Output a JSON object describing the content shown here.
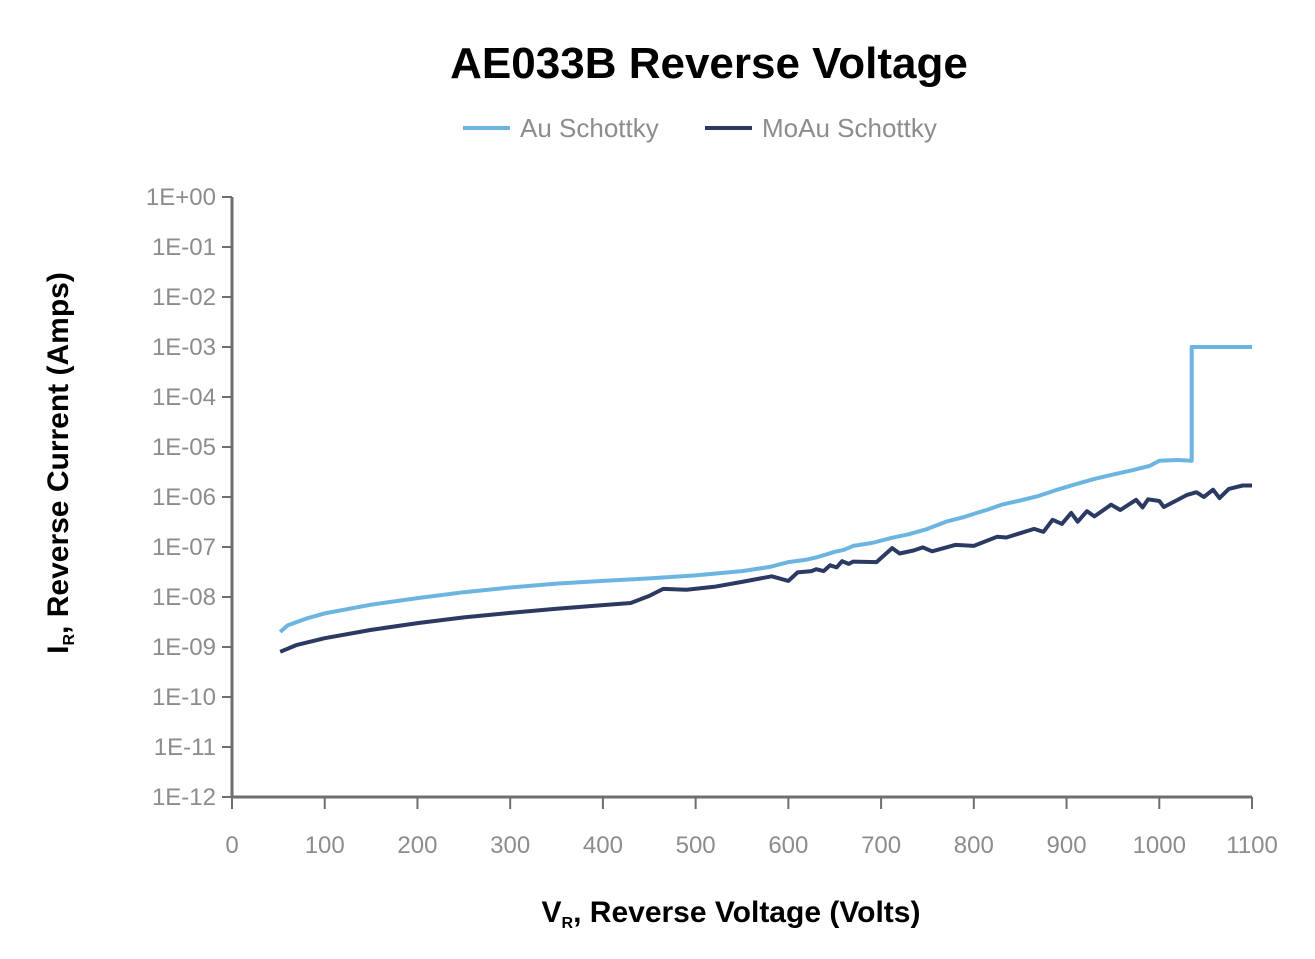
{
  "chart_data": {
    "type": "line",
    "title": "AE033B Reverse Voltage",
    "xlabel_main": "V",
    "xlabel_sub": "R",
    "xlabel_rest": ", Reverse Voltage (Volts)",
    "ylabel_main": "I",
    "ylabel_sub": "R",
    "ylabel_rest": ", Reverse Current (Amps)",
    "xlim": [
      0,
      1100
    ],
    "ylim": [
      1e-12,
      1
    ],
    "yscale": "log",
    "x_ticks": [
      "0",
      "100",
      "200",
      "300",
      "400",
      "500",
      "600",
      "700",
      "800",
      "900",
      "1000",
      "1100"
    ],
    "y_ticks": [
      "1E+00",
      "1E-01",
      "1E-02",
      "1E-03",
      "1E-04",
      "1E-05",
      "1E-06",
      "1E-07",
      "1E-08",
      "1E-09",
      "1E-10",
      "1E-11",
      "1E-12"
    ],
    "grid": false,
    "legend_position": "top-center",
    "series": [
      {
        "name": "Au Schottky",
        "color": "#6bb5e0",
        "points": [
          [
            52,
            2e-09
          ],
          [
            60,
            2.7e-09
          ],
          [
            80,
            3.7e-09
          ],
          [
            100,
            4.7e-09
          ],
          [
            150,
            7e-09
          ],
          [
            200,
            9.5e-09
          ],
          [
            250,
            1.25e-08
          ],
          [
            300,
            1.55e-08
          ],
          [
            350,
            1.85e-08
          ],
          [
            400,
            2.1e-08
          ],
          [
            450,
            2.35e-08
          ],
          [
            500,
            2.7e-08
          ],
          [
            550,
            3.3e-08
          ],
          [
            580,
            4e-08
          ],
          [
            600,
            5e-08
          ],
          [
            620,
            5.6e-08
          ],
          [
            630,
            6.2e-08
          ],
          [
            640,
            7e-08
          ],
          [
            650,
            8e-08
          ],
          [
            660,
            8.8e-08
          ],
          [
            670,
            1.05e-07
          ],
          [
            690,
            1.2e-07
          ],
          [
            710,
            1.5e-07
          ],
          [
            730,
            1.8e-07
          ],
          [
            750,
            2.3e-07
          ],
          [
            770,
            3.2e-07
          ],
          [
            790,
            4e-07
          ],
          [
            800,
            4.6e-07
          ],
          [
            815,
            5.6e-07
          ],
          [
            830,
            7e-07
          ],
          [
            850,
            8.5e-07
          ],
          [
            870,
            1.05e-06
          ],
          [
            890,
            1.4e-06
          ],
          [
            910,
            1.8e-06
          ],
          [
            930,
            2.3e-06
          ],
          [
            950,
            2.8e-06
          ],
          [
            970,
            3.4e-06
          ],
          [
            990,
            4.2e-06
          ],
          [
            1000,
            5.3e-06
          ],
          [
            1020,
            5.5e-06
          ],
          [
            1035,
            5.3e-06
          ],
          [
            1035,
            0.001
          ],
          [
            1100,
            0.001
          ]
        ]
      },
      {
        "name": "MoAu Schottky",
        "color": "#2b3a63",
        "points": [
          [
            52,
            8e-10
          ],
          [
            70,
            1.1e-09
          ],
          [
            100,
            1.5e-09
          ],
          [
            150,
            2.2e-09
          ],
          [
            200,
            3e-09
          ],
          [
            250,
            3.9e-09
          ],
          [
            300,
            4.8e-09
          ],
          [
            350,
            5.8e-09
          ],
          [
            400,
            6.9e-09
          ],
          [
            430,
            7.6e-09
          ],
          [
            450,
            1.05e-08
          ],
          [
            465,
            1.45e-08
          ],
          [
            490,
            1.4e-08
          ],
          [
            520,
            1.6e-08
          ],
          [
            550,
            2e-08
          ],
          [
            582,
            2.6e-08
          ],
          [
            600,
            2.1e-08
          ],
          [
            610,
            3.1e-08
          ],
          [
            625,
            3.3e-08
          ],
          [
            630,
            3.6e-08
          ],
          [
            638,
            3.3e-08
          ],
          [
            645,
            4.3e-08
          ],
          [
            652,
            3.9e-08
          ],
          [
            658,
            5.2e-08
          ],
          [
            665,
            4.6e-08
          ],
          [
            670,
            5.1e-08
          ],
          [
            695,
            5e-08
          ],
          [
            712,
            9.5e-08
          ],
          [
            720,
            7.4e-08
          ],
          [
            735,
            8.5e-08
          ],
          [
            745,
            9.8e-08
          ],
          [
            755,
            8.2e-08
          ],
          [
            780,
            1.1e-07
          ],
          [
            800,
            1.05e-07
          ],
          [
            825,
            1.6e-07
          ],
          [
            835,
            1.55e-07
          ],
          [
            865,
            2.3e-07
          ],
          [
            875,
            2e-07
          ],
          [
            885,
            3.5e-07
          ],
          [
            895,
            2.9e-07
          ],
          [
            905,
            4.8e-07
          ],
          [
            912,
            3.2e-07
          ],
          [
            922,
            5.2e-07
          ],
          [
            930,
            4.1e-07
          ],
          [
            948,
            7e-07
          ],
          [
            958,
            5.5e-07
          ],
          [
            975,
            8.8e-07
          ],
          [
            982,
            6.2e-07
          ],
          [
            988,
            9e-07
          ],
          [
            1000,
            8.3e-07
          ],
          [
            1005,
            6.3e-07
          ],
          [
            1030,
            1.1e-06
          ],
          [
            1040,
            1.25e-06
          ],
          [
            1048,
            1e-06
          ],
          [
            1058,
            1.4e-06
          ],
          [
            1065,
            9.5e-07
          ],
          [
            1075,
            1.45e-06
          ],
          [
            1090,
            1.7e-06
          ],
          [
            1100,
            1.7e-06
          ]
        ]
      }
    ]
  }
}
